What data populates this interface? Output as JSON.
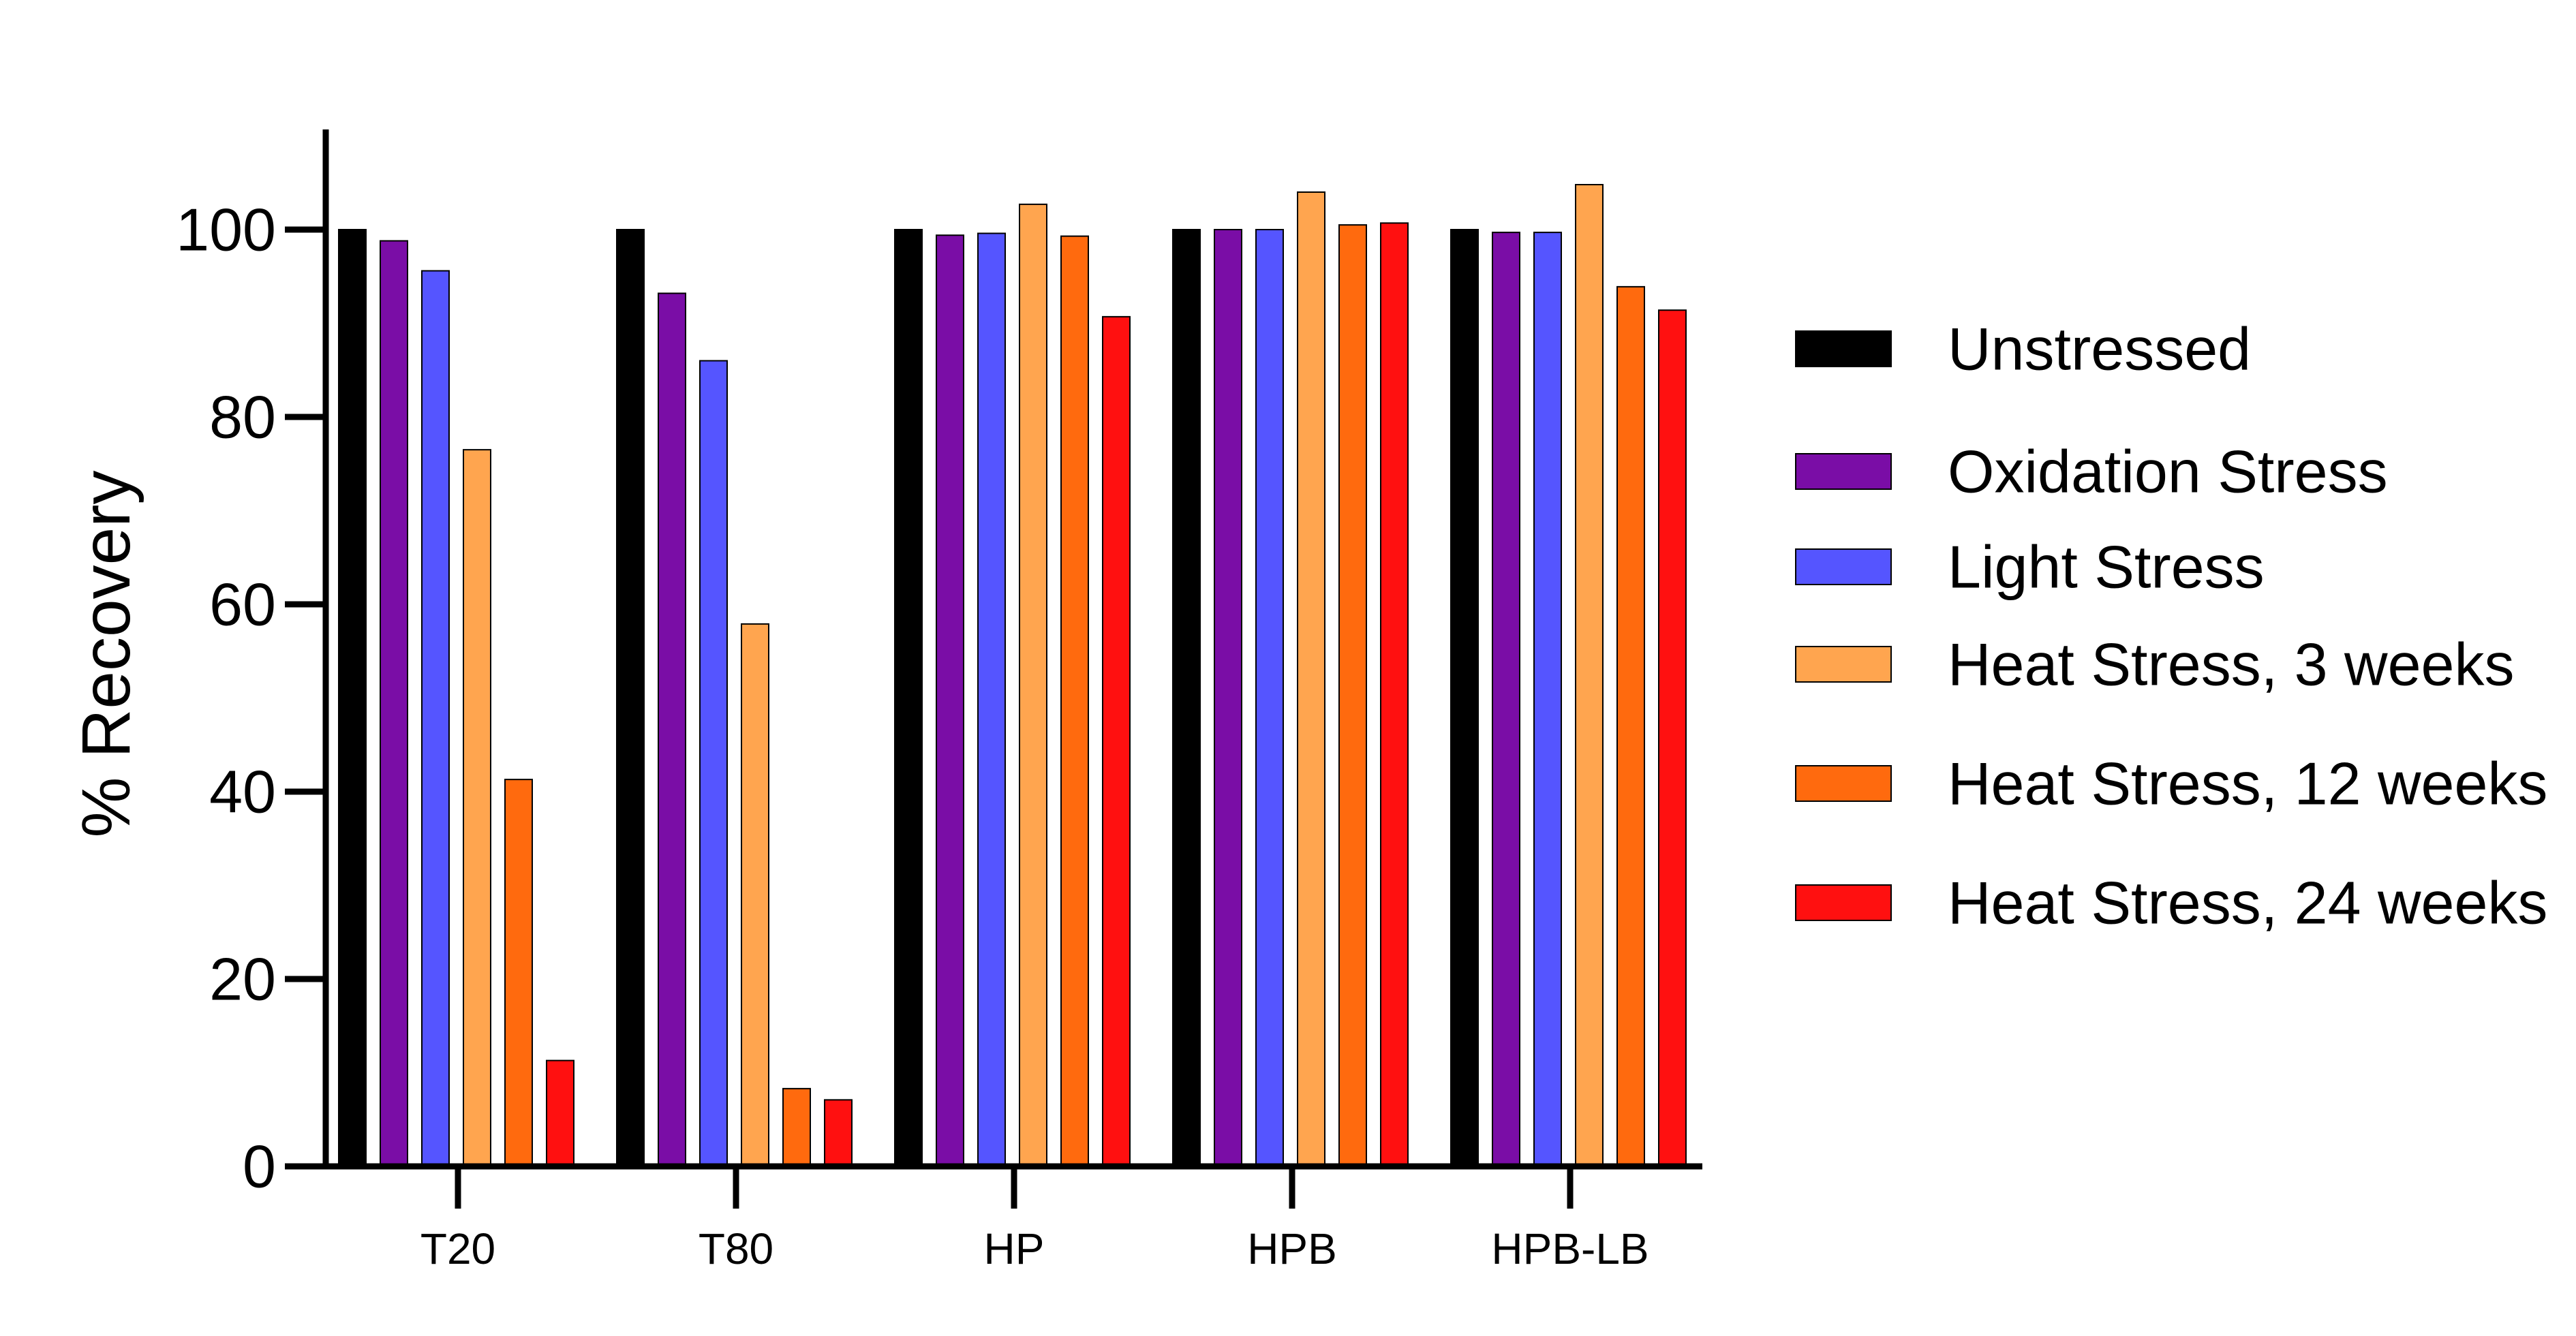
{
  "chart_data": {
    "type": "bar",
    "title": "",
    "xlabel": "",
    "ylabel": "% Recovery",
    "ylim": [
      0,
      110
    ],
    "yticks": [
      0,
      20,
      40,
      60,
      80,
      100
    ],
    "grid": false,
    "legend_position": "right",
    "categories": [
      "T20",
      "T80",
      "HP",
      "HPB",
      "HPB-LB"
    ],
    "series": [
      {
        "name": "Unstressed",
        "color": "#000000",
        "values": [
          100,
          100,
          100,
          100,
          100
        ]
      },
      {
        "name": "Oxidation Stress",
        "color": "#7A0DA6",
        "values": [
          98.8,
          93.2,
          99.4,
          100,
          99.7
        ]
      },
      {
        "name": "Light Stress",
        "color": "#5555FF",
        "values": [
          95.6,
          86,
          99.6,
          100,
          99.7
        ]
      },
      {
        "name": "Heat Stress, 3 weeks",
        "color": "#FFA54F",
        "values": [
          76.5,
          57.9,
          102.7,
          104,
          104.8
        ]
      },
      {
        "name": "Heat Stress, 12 weeks",
        "color": "#FF6A0E",
        "values": [
          41.3,
          8.3,
          99.3,
          100.5,
          93.9
        ]
      },
      {
        "name": "Heat Stress, 24 weeks",
        "color": "#FF1010",
        "values": [
          11.3,
          7.1,
          90.7,
          100.7,
          91.4
        ]
      }
    ]
  }
}
